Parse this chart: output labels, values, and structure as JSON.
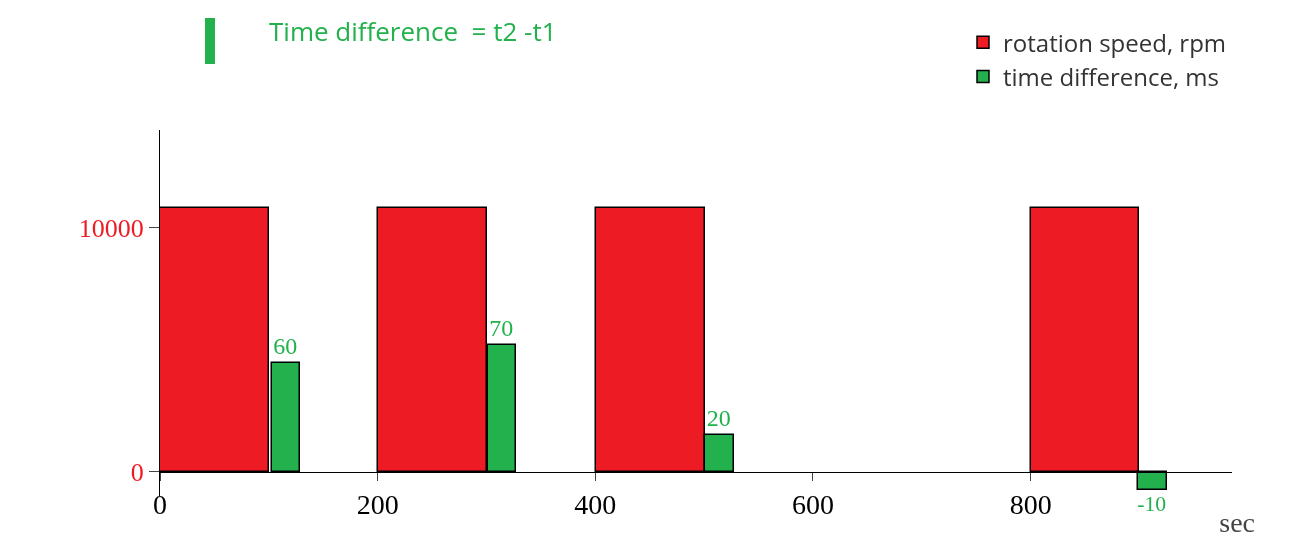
{
  "chart_data": {
    "type": "bar",
    "annotations": [
      "Time difference  = t2 -t1"
    ],
    "xlabel": "sec",
    "series": [
      {
        "name": "rotation speed, rpm",
        "color": "#ed1c24",
        "x": [
          50,
          250,
          451,
          850
        ],
        "values": [
          10800,
          10800,
          10800,
          10800
        ]
      },
      {
        "name": "time difference, ms",
        "color": "#22b14c",
        "axis": "y2",
        "x": [
          116,
          314,
          514,
          912
        ],
        "values": [
          60,
          70,
          20,
          -10
        ],
        "value_labels": [
          "60",
          "70",
          "20",
          "-10"
        ]
      }
    ],
    "xlim": [
      0,
      985
    ],
    "xticks": [
      0,
      200,
      400,
      600,
      800
    ],
    "ylim": [
      -1000,
      14000
    ],
    "yticks": [
      0,
      10000
    ],
    "y2lim": [
      -13.5,
      189
    ],
    "grid": false,
    "legend": "top right"
  }
}
